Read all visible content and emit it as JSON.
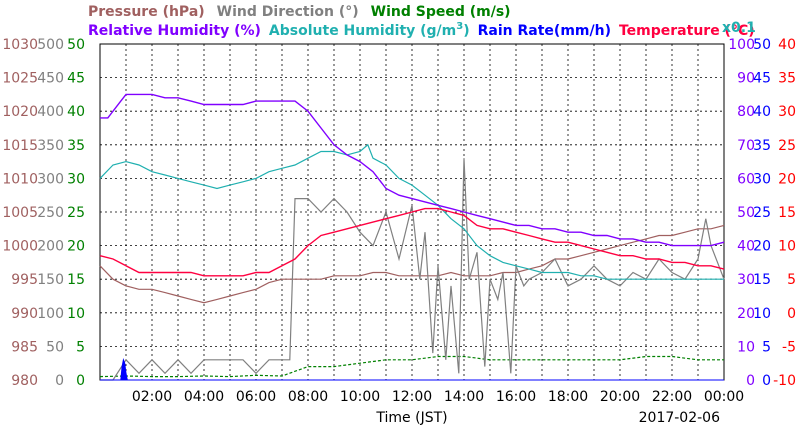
{
  "chart_data": {
    "type": "line",
    "date": "2017-02-06",
    "xlabel": "Time (JST)",
    "x_ticks": [
      "02:00",
      "04:00",
      "06:00",
      "08:00",
      "10:00",
      "12:00",
      "14:00",
      "16:00",
      "18:00",
      "20:00",
      "22:00",
      "00:00"
    ],
    "x_range_hours": [
      0,
      24
    ],
    "legend_row1": [
      {
        "key": "pressure",
        "text": "Pressure (hPa)",
        "color": "#a06060"
      },
      {
        "key": "wind_dir",
        "text": "Wind Direction (°)",
        "color": "#808080"
      },
      {
        "key": "wind_speed",
        "text": "Wind Speed (m/s)",
        "color": "#008000"
      }
    ],
    "legend_row2": [
      {
        "key": "rel_hum",
        "text": "Relative Humidity (%)",
        "color": "#8000ff"
      },
      {
        "key": "abs_hum",
        "text": "Absolute Humidity (g/m",
        "sup": "3",
        "tail": ")",
        "color": "#20b0b0"
      },
      {
        "key": "rain",
        "text": "Rain Rate(mm/h)",
        "color": "#0000ff"
      },
      {
        "key": "temp",
        "text": "Temperature (°C)",
        "color": "#ff0040"
      }
    ],
    "abs_hum_scale_note": "x0.1",
    "axes": {
      "pressure": {
        "color": "#a06060",
        "range": [
          980,
          1030
        ],
        "ticks": [
          "1030",
          "1025",
          "1020",
          "1015",
          "1010",
          "1005",
          "1000",
          "995",
          "990",
          "985",
          "980"
        ]
      },
      "wind_dir": {
        "color": "#808080",
        "range": [
          0,
          500
        ],
        "ticks": [
          "500",
          "450",
          "400",
          "350",
          "300",
          "250",
          "200",
          "150",
          "100",
          "50",
          "0"
        ]
      },
      "wind_speed": {
        "color": "#008000",
        "range": [
          0,
          50
        ],
        "ticks": [
          "50",
          "45",
          "40",
          "35",
          "30",
          "25",
          "20",
          "15",
          "10",
          "5",
          "0"
        ]
      },
      "rel_hum": {
        "color": "#8000ff",
        "range": [
          0,
          100
        ],
        "ticks": [
          "100",
          "90",
          "80",
          "70",
          "60",
          "50",
          "40",
          "30",
          "20",
          "10",
          "0"
        ]
      },
      "rain": {
        "color": "#0000ff",
        "range": [
          0,
          50
        ],
        "ticks": [
          "50",
          "45",
          "40",
          "35",
          "30",
          "25",
          "20",
          "15",
          "10",
          "5",
          "0"
        ]
      },
      "temp": {
        "color": "#ff0000",
        "range": [
          -10,
          40
        ],
        "ticks": [
          "40",
          "35",
          "30",
          "25",
          "20",
          "15",
          "10",
          "5",
          "0",
          "-5",
          "-10"
        ]
      }
    },
    "series": [
      {
        "key": "pressure",
        "name": "Pressure (hPa)",
        "axis": "pressure",
        "color": "#a06060",
        "x": [
          0,
          0.5,
          1,
          1.5,
          2,
          2.5,
          3,
          3.5,
          4,
          4.5,
          5,
          5.5,
          6,
          6.5,
          7,
          7.5,
          8,
          8.5,
          9,
          9.5,
          10,
          10.5,
          11,
          11.5,
          12,
          12.5,
          13,
          13.5,
          14,
          14.5,
          15,
          15.5,
          16,
          16.5,
          17,
          17.5,
          18,
          18.5,
          19,
          19.5,
          20,
          20.5,
          21,
          21.5,
          22,
          22.5,
          23,
          23.5,
          24
        ],
        "y": [
          997,
          995,
          994,
          993.5,
          993.5,
          993,
          992.5,
          992,
          991.5,
          992,
          992.5,
          993,
          993.5,
          994.5,
          995,
          995,
          995,
          995,
          995.5,
          995.5,
          995.5,
          996,
          996,
          995.5,
          995.5,
          995.5,
          995.5,
          996,
          995.5,
          995.5,
          995.5,
          996,
          996,
          996.5,
          997,
          998,
          998,
          998.5,
          999,
          999.5,
          1000,
          1000.5,
          1001,
          1001.5,
          1001.5,
          1002,
          1002.5,
          1002.5,
          1003
        ]
      },
      {
        "key": "wind_dir",
        "name": "Wind Direction (°)",
        "axis": "wind_dir",
        "color": "#808080",
        "x": [
          0,
          0.5,
          1,
          1.5,
          2,
          2.5,
          3,
          3.5,
          4,
          4.5,
          5,
          5.5,
          6,
          6.5,
          7,
          7.3,
          7.5,
          8,
          8.5,
          9,
          9.5,
          10,
          10.5,
          11,
          11.5,
          12,
          12.3,
          12.5,
          12.8,
          13,
          13.3,
          13.5,
          13.8,
          14,
          14.2,
          14.5,
          14.8,
          15,
          15.3,
          15.5,
          15.8,
          16,
          16.3,
          16.5,
          17,
          17.5,
          18,
          18.5,
          19,
          19.5,
          20,
          20.5,
          21,
          21.5,
          22,
          22.5,
          23,
          23.3,
          23.5,
          24
        ],
        "y": [
          0,
          0,
          30,
          10,
          30,
          10,
          30,
          10,
          30,
          30,
          30,
          30,
          10,
          30,
          30,
          30,
          270,
          270,
          250,
          270,
          250,
          220,
          200,
          250,
          180,
          260,
          150,
          220,
          40,
          170,
          30,
          140,
          10,
          330,
          150,
          190,
          20,
          150,
          120,
          160,
          10,
          170,
          140,
          150,
          160,
          180,
          140,
          150,
          170,
          150,
          140,
          160,
          150,
          180,
          160,
          150,
          180,
          240,
          200,
          150
        ]
      },
      {
        "key": "wind_speed",
        "name": "Wind Speed (m/s)",
        "axis": "wind_speed",
        "color": "#008000",
        "x": [
          0,
          1,
          2,
          3,
          4,
          5,
          6,
          7,
          8,
          9,
          10,
          11,
          12,
          13,
          14,
          15,
          16,
          17,
          18,
          19,
          20,
          21,
          22,
          23,
          24
        ],
        "y": [
          0.5,
          0.6,
          0.5,
          0.5,
          0.6,
          0.5,
          0.7,
          0.6,
          2,
          2,
          2.5,
          3,
          3,
          3.5,
          3.5,
          3,
          3,
          3,
          3,
          3,
          3,
          3.5,
          3.5,
          3,
          3
        ]
      },
      {
        "key": "rel_hum",
        "name": "Relative Humidity (%)",
        "axis": "rel_hum",
        "color": "#8000ff",
        "x": [
          0,
          0.3,
          0.8,
          1,
          1.5,
          2,
          2.5,
          3,
          3.5,
          4,
          4.5,
          5,
          5.5,
          6,
          6.5,
          7,
          7.5,
          8,
          8.5,
          9,
          9.5,
          10,
          10.5,
          11,
          11.5,
          12,
          12.5,
          13,
          13.5,
          14,
          14.5,
          15,
          15.5,
          16,
          16.5,
          17,
          17.5,
          18,
          18.5,
          19,
          19.5,
          20,
          20.5,
          21,
          21.5,
          22,
          22.5,
          23,
          23.5,
          24
        ],
        "y": [
          78,
          78,
          83,
          85,
          85,
          85,
          84,
          84,
          83,
          82,
          82,
          82,
          82,
          83,
          83,
          83,
          83,
          80,
          75,
          70,
          67,
          65,
          62,
          57,
          55,
          54,
          53,
          52,
          51,
          50,
          49,
          48,
          47,
          46,
          46,
          45,
          45,
          44,
          44,
          43,
          43,
          42,
          42,
          41,
          41,
          40,
          40,
          40,
          40,
          41
        ]
      },
      {
        "key": "abs_hum",
        "name": "Absolute Humidity (g/m3)",
        "axis": "rel_hum",
        "color": "#20b0b0",
        "x": [
          0,
          0.5,
          1,
          1.5,
          2,
          2.5,
          3,
          3.5,
          4,
          4.5,
          5,
          5.5,
          6,
          6.5,
          7,
          7.5,
          8,
          8.5,
          9,
          9.5,
          10,
          10.3,
          10.5,
          11,
          11.5,
          12,
          12.5,
          13,
          13.5,
          14,
          14.5,
          15,
          15.5,
          16,
          16.5,
          17,
          17.5,
          18,
          18.5,
          19,
          19.5,
          20,
          20.5,
          21,
          21.5,
          22,
          22.5,
          23,
          23.5,
          24
        ],
        "y": [
          60,
          64,
          65,
          64,
          62,
          61,
          60,
          59,
          58,
          57,
          58,
          59,
          60,
          62,
          63,
          64,
          66,
          68,
          68,
          67,
          68,
          70,
          66,
          64,
          60,
          58,
          55,
          52,
          48,
          45,
          40,
          37,
          35,
          34,
          33,
          32,
          32,
          32,
          31,
          31,
          30,
          30,
          30,
          30,
          30,
          30,
          30,
          30,
          30,
          30
        ]
      },
      {
        "key": "rain",
        "name": "Rain Rate(mm/h)",
        "axis": "rain",
        "color": "#0000ff",
        "x": [
          0,
          0.8,
          0.85,
          0.9,
          0.95,
          1.0,
          1.05,
          1.2,
          24
        ],
        "y": [
          0,
          0,
          2,
          3,
          2.5,
          1,
          0,
          0,
          0
        ]
      },
      {
        "key": "temp",
        "name": "Temperature (°C)",
        "axis": "temp",
        "color": "#ff0040",
        "x": [
          0,
          0.5,
          1,
          1.5,
          2,
          2.5,
          3,
          3.5,
          4,
          4.5,
          5,
          5.5,
          6,
          6.5,
          7,
          7.5,
          8,
          8.5,
          9,
          9.5,
          10,
          10.5,
          11,
          11.5,
          12,
          12.5,
          13,
          13.5,
          14,
          14.5,
          15,
          15.5,
          16,
          16.5,
          17,
          17.5,
          18,
          18.5,
          19,
          19.5,
          20,
          20.5,
          21,
          21.5,
          22,
          22.5,
          23,
          23.5,
          24
        ],
        "y": [
          8.5,
          8,
          7,
          6,
          6,
          6,
          6,
          6,
          5.5,
          5.5,
          5.5,
          5.5,
          6,
          6,
          7,
          8,
          10,
          11.5,
          12,
          12.5,
          13,
          13.5,
          14,
          14.5,
          15,
          15.5,
          15.5,
          15,
          14.5,
          13,
          12.5,
          12.5,
          12,
          11.5,
          11,
          10.5,
          10.5,
          10,
          9.5,
          9,
          8.5,
          8.5,
          8,
          8,
          7.5,
          7.5,
          7,
          7,
          6.5
        ]
      }
    ]
  }
}
